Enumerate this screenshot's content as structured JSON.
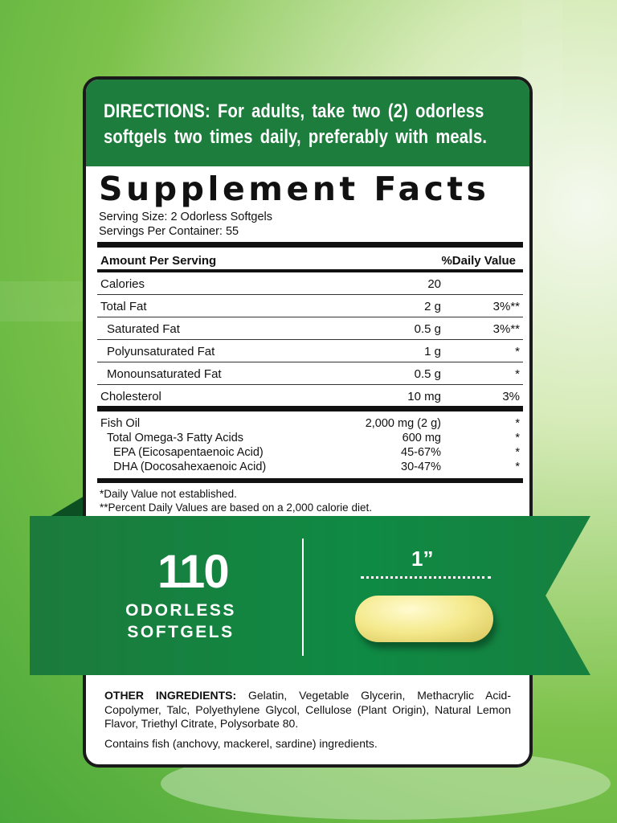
{
  "directions": "DIRECTIONS: For adults, take two (2) odorless softgels two times daily, preferably with meals.",
  "facts": {
    "title": "Supplement Facts",
    "serving_size": "Serving Size: 2 Odorless Softgels",
    "servings_per_container": "Servings Per Container: 55",
    "header": {
      "amount": "Amount Per Serving",
      "dv": "%Daily Value"
    },
    "rows": [
      {
        "name": "Calories",
        "value": "20",
        "dv": ""
      },
      {
        "name": "Total Fat",
        "value": "2 g",
        "dv": "3%**"
      },
      {
        "name": "Saturated Fat",
        "value": "0.5 g",
        "dv": "3%**"
      },
      {
        "name": "Polyunsaturated Fat",
        "value": "1 g",
        "dv": "*"
      },
      {
        "name": "Monounsaturated Fat",
        "value": "0.5 g",
        "dv": "*"
      },
      {
        "name": "Cholesterol",
        "value": "10 mg",
        "dv": "3%"
      }
    ],
    "oil_rows": [
      {
        "name": "Fish Oil",
        "value": "2,000 mg (2 g)",
        "dv": "*"
      },
      {
        "name": "Total Omega-3 Fatty Acids",
        "value": "600 mg",
        "dv": "*"
      },
      {
        "name": "EPA (Eicosapentaenoic Acid)",
        "value": "45-67%",
        "dv": "*"
      },
      {
        "name": "DHA (Docosahexaenoic Acid)",
        "value": "30-47%",
        "dv": "*"
      }
    ],
    "footnote1": "*Daily Value not established.",
    "footnote2": "**Percent Daily Values are based on a 2,000 calorie diet."
  },
  "ribbon": {
    "count": "110",
    "line1": "ODORLESS",
    "line2": "SOFTGELS",
    "size": "1”"
  },
  "other": {
    "label": "OTHER INGREDIENTS:",
    "text": " Gelatin, Vegetable Glycerin, Methacrylic Acid- Copolymer, Talc, Polyethylene Glycol, Cellulose (Plant Origin), Natural Lemon Flavor, Triethyl Citrate, Polysorbate 80.",
    "allergen": "Contains fish (anchovy, mackerel, sardine) ingredients."
  },
  "colors": {
    "green": "#1d7d3d",
    "background": "#7cc24a"
  }
}
